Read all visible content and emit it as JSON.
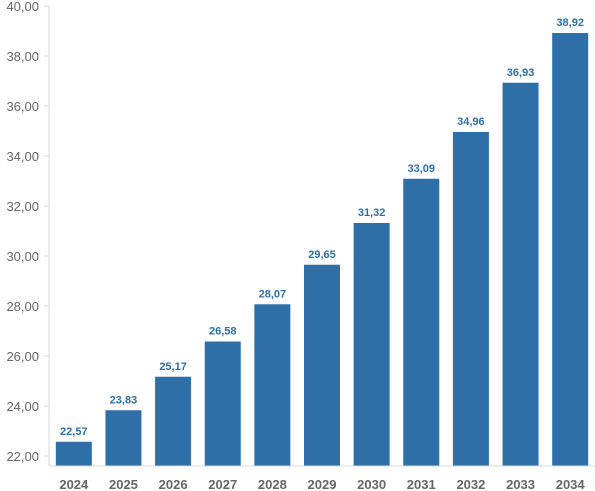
{
  "chart_data": {
    "type": "bar",
    "categories": [
      "2024",
      "2025",
      "2026",
      "2027",
      "2028",
      "2029",
      "2030",
      "2031",
      "2032",
      "2033",
      "2034"
    ],
    "values": [
      22.57,
      23.83,
      25.17,
      26.58,
      28.07,
      29.65,
      31.32,
      33.09,
      34.96,
      36.93,
      38.92
    ],
    "value_labels": [
      "22,57",
      "23,83",
      "25,17",
      "26,58",
      "28,07",
      "29,65",
      "31,32",
      "33,09",
      "34,96",
      "36,93",
      "38,92"
    ],
    "y_ticks": [
      22,
      24,
      26,
      28,
      30,
      32,
      34,
      36,
      38,
      40
    ],
    "y_tick_labels": [
      "22,00",
      "24,00",
      "26,00",
      "28,00",
      "30,00",
      "32,00",
      "34,00",
      "36,00",
      "38,00",
      "40,00"
    ],
    "ylim": [
      21.6,
      40
    ],
    "title": "",
    "xlabel": "",
    "ylabel": "",
    "grid": false,
    "legend": "none",
    "colors": {
      "bar": "#2f6fa8",
      "data_label": "#2f6fa8",
      "axis_text": "#666666",
      "axis_line": "#d9d9d9"
    }
  }
}
